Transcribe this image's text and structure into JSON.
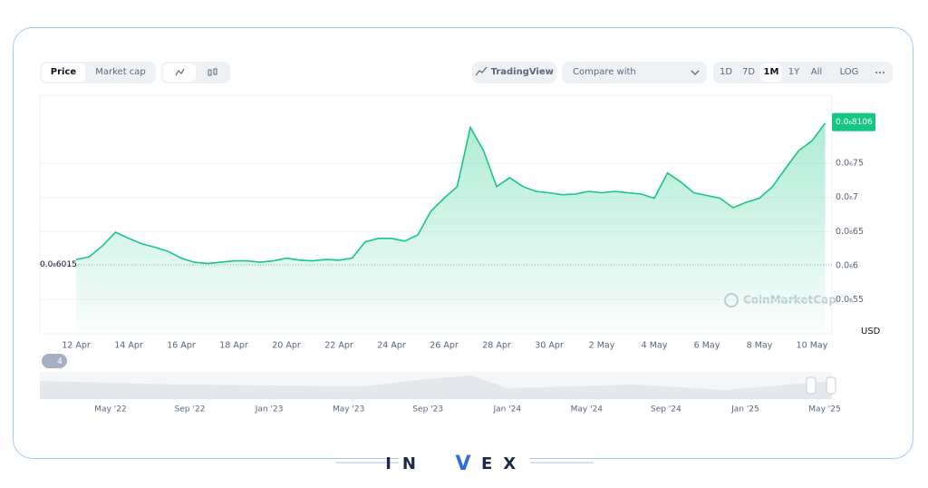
{
  "toolbar": {
    "tabs": [
      "Price",
      "Market cap"
    ],
    "tradingview": "TradingView",
    "compare": "Compare with",
    "ranges": [
      "1D",
      "7D",
      "1M",
      "1Y",
      "All"
    ],
    "log": "LOG"
  },
  "chart_data": {
    "type": "line",
    "color": "#16c784",
    "categories": [
      "12 Apr",
      null,
      null,
      null,
      "14 Apr",
      null,
      null,
      null,
      "16 Apr",
      null,
      null,
      null,
      "18 Apr",
      null,
      null,
      null,
      "20 Apr",
      null,
      null,
      null,
      "22 Apr",
      null,
      null,
      null,
      "24 Apr",
      null,
      null,
      null,
      "26 Apr",
      null,
      null,
      null,
      "28 Apr",
      null,
      null,
      null,
      "30 Apr",
      null,
      null,
      null,
      "2 May",
      null,
      null,
      null,
      "4 May",
      null,
      null,
      null,
      "6 May",
      null,
      null,
      null,
      "8 May",
      null,
      null,
      null,
      "10 May",
      null
    ],
    "values": [
      6.09e-07,
      6.13e-07,
      6.29e-07,
      6.49e-07,
      6.4e-07,
      6.32e-07,
      6.27e-07,
      6.21e-07,
      6.11e-07,
      6.05e-07,
      6.03e-07,
      6.05e-07,
      6.07e-07,
      6.07e-07,
      6.05e-07,
      6.07e-07,
      6.11e-07,
      6.08e-07,
      6.07e-07,
      6.09e-07,
      6.08e-07,
      6.11e-07,
      6.35e-07,
      6.4e-07,
      6.4e-07,
      6.36e-07,
      6.45e-07,
      6.8e-07,
      6.99e-07,
      7.16e-07,
      8.03e-07,
      7.69e-07,
      7.16e-07,
      7.29e-07,
      7.16e-07,
      7.09e-07,
      7.07e-07,
      7.04e-07,
      7.05e-07,
      7.09e-07,
      7.07e-07,
      7.09e-07,
      7.07e-07,
      7.05e-07,
      6.99e-07,
      7.36e-07,
      7.23e-07,
      7.07e-07,
      7.03e-07,
      6.99e-07,
      6.85e-07,
      6.93e-07,
      6.99e-07,
      7.16e-07,
      7.43e-07,
      7.69e-07,
      7.83e-07,
      8.09e-07
    ],
    "ylim": [
      5e-07,
      8.5e-07
    ],
    "yticks": [
      {
        "value": 5.5e-07,
        "label": "0.0₆55"
      },
      {
        "value": 6e-07,
        "label": "0.0₆6"
      },
      {
        "value": 6.5e-07,
        "label": "0.0₆65"
      },
      {
        "value": 7e-07,
        "label": "0.0₆7"
      },
      {
        "value": 7.5e-07,
        "label": "0.0₆75"
      }
    ],
    "y_unit": "USD",
    "last_price": {
      "value": 8.106e-07,
      "label": "0.0₆8106"
    },
    "start_price": {
      "value": 6.015e-07,
      "label": "0.0₆6015"
    },
    "watermark": "CoinMarketCap",
    "grid": true
  },
  "navigator": {
    "badge": "4",
    "labels": [
      "May '22",
      "Sep '22",
      "Jan '23",
      "May '23",
      "Sep '23",
      "Jan '24",
      "May '24",
      "Sep '24",
      "Jan '25",
      "May '25"
    ]
  },
  "brand": [
    "IN",
    "V",
    "EX"
  ]
}
